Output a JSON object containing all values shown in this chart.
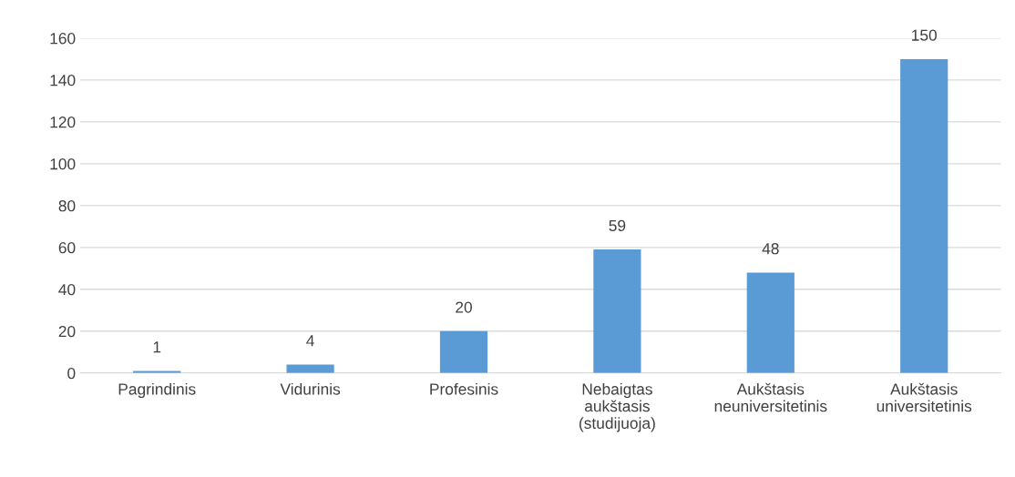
{
  "chart_data": {
    "type": "bar",
    "categories": [
      "Pagrindinis",
      "Vidurinis",
      "Profesinis",
      "Nebaigtas\naukštasis\n(studijuoja)",
      "Aukštasis\nneuniversitetinis",
      "Aukštasis\nuniversitetinis"
    ],
    "values": [
      1,
      4,
      20,
      59,
      48,
      150
    ],
    "color": "#5b9bd5",
    "ylim": [
      0,
      160
    ],
    "yticks": [
      0,
      20,
      40,
      60,
      80,
      100,
      120,
      140,
      160
    ],
    "grid": "y",
    "data_labels": true
  }
}
